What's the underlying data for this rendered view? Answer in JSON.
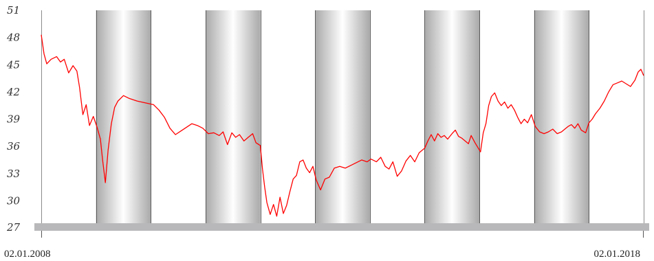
{
  "chart_data": {
    "type": "line",
    "title": "",
    "xlabel": "",
    "ylabel": "",
    "x_range": [
      "02.01.2008",
      "02.01.2018"
    ],
    "x_tick_labels": [
      "02.01.2008",
      "02.01.2018"
    ],
    "y_ticks": [
      27,
      30,
      33,
      36,
      39,
      42,
      45,
      48,
      51
    ],
    "ylim": [
      27,
      51
    ],
    "grid": "alternating shaded yearly bands",
    "colors": {
      "line": "#ff0000",
      "axis_bar": "#b8b8ba",
      "band_edge": "#a9a9a9",
      "band_center": "#ffffff"
    },
    "series": [
      {
        "values": [
          [
            2008.0,
            48.3
          ],
          [
            2008.05,
            46.2
          ],
          [
            2008.1,
            45.1
          ],
          [
            2008.18,
            45.6
          ],
          [
            2008.28,
            45.9
          ],
          [
            2008.35,
            45.3
          ],
          [
            2008.42,
            45.6
          ],
          [
            2008.5,
            44.1
          ],
          [
            2008.58,
            44.9
          ],
          [
            2008.65,
            44.3
          ],
          [
            2008.7,
            42.5
          ],
          [
            2008.76,
            39.5
          ],
          [
            2008.82,
            40.6
          ],
          [
            2008.88,
            38.3
          ],
          [
            2008.95,
            39.3
          ],
          [
            2009.02,
            38.1
          ],
          [
            2009.08,
            36.8
          ],
          [
            2009.12,
            34.5
          ],
          [
            2009.17,
            32.0
          ],
          [
            2009.22,
            35.6
          ],
          [
            2009.28,
            38.5
          ],
          [
            2009.34,
            40.3
          ],
          [
            2009.4,
            41.0
          ],
          [
            2009.5,
            41.6
          ],
          [
            2009.6,
            41.3
          ],
          [
            2009.75,
            41.0
          ],
          [
            2009.9,
            40.8
          ],
          [
            2010.05,
            40.6
          ],
          [
            2010.15,
            40.0
          ],
          [
            2010.25,
            39.2
          ],
          [
            2010.35,
            38.0
          ],
          [
            2010.45,
            37.3
          ],
          [
            2010.55,
            37.7
          ],
          [
            2010.65,
            38.1
          ],
          [
            2010.75,
            38.5
          ],
          [
            2010.85,
            38.3
          ],
          [
            2010.95,
            38.0
          ],
          [
            2011.05,
            37.4
          ],
          [
            2011.15,
            37.5
          ],
          [
            2011.25,
            37.2
          ],
          [
            2011.32,
            37.6
          ],
          [
            2011.4,
            36.2
          ],
          [
            2011.48,
            37.5
          ],
          [
            2011.55,
            37.0
          ],
          [
            2011.62,
            37.3
          ],
          [
            2011.7,
            36.6
          ],
          [
            2011.78,
            37.0
          ],
          [
            2011.86,
            37.4
          ],
          [
            2011.92,
            36.4
          ],
          [
            2012.0,
            36.1
          ],
          [
            2012.04,
            33.5
          ],
          [
            2012.08,
            31.5
          ],
          [
            2012.12,
            29.8
          ],
          [
            2012.18,
            28.5
          ],
          [
            2012.24,
            29.6
          ],
          [
            2012.3,
            28.3
          ],
          [
            2012.36,
            30.4
          ],
          [
            2012.42,
            28.6
          ],
          [
            2012.48,
            29.5
          ],
          [
            2012.54,
            31.0
          ],
          [
            2012.6,
            32.4
          ],
          [
            2012.66,
            32.8
          ],
          [
            2012.72,
            34.3
          ],
          [
            2012.78,
            34.5
          ],
          [
            2012.84,
            33.6
          ],
          [
            2012.9,
            33.1
          ],
          [
            2012.96,
            33.8
          ],
          [
            2013.02,
            32.3
          ],
          [
            2013.1,
            31.2
          ],
          [
            2013.18,
            32.4
          ],
          [
            2013.26,
            32.6
          ],
          [
            2013.35,
            33.6
          ],
          [
            2013.45,
            33.8
          ],
          [
            2013.55,
            33.6
          ],
          [
            2013.65,
            33.9
          ],
          [
            2013.75,
            34.2
          ],
          [
            2013.85,
            34.5
          ],
          [
            2013.95,
            34.3
          ],
          [
            2014.02,
            34.6
          ],
          [
            2014.12,
            34.3
          ],
          [
            2014.2,
            34.8
          ],
          [
            2014.28,
            33.8
          ],
          [
            2014.35,
            33.5
          ],
          [
            2014.42,
            34.3
          ],
          [
            2014.5,
            32.7
          ],
          [
            2014.58,
            33.3
          ],
          [
            2014.66,
            34.4
          ],
          [
            2014.74,
            35.0
          ],
          [
            2014.82,
            34.3
          ],
          [
            2014.9,
            35.3
          ],
          [
            2015.0,
            35.8
          ],
          [
            2015.06,
            36.6
          ],
          [
            2015.12,
            37.3
          ],
          [
            2015.18,
            36.6
          ],
          [
            2015.24,
            37.4
          ],
          [
            2015.3,
            37.0
          ],
          [
            2015.36,
            37.2
          ],
          [
            2015.42,
            36.8
          ],
          [
            2015.5,
            37.4
          ],
          [
            2015.56,
            37.8
          ],
          [
            2015.62,
            37.1
          ],
          [
            2015.68,
            36.9
          ],
          [
            2015.74,
            36.6
          ],
          [
            2015.8,
            36.3
          ],
          [
            2015.85,
            37.2
          ],
          [
            2015.92,
            36.4
          ],
          [
            2015.97,
            35.9
          ],
          [
            2016.02,
            35.4
          ],
          [
            2016.07,
            37.5
          ],
          [
            2016.12,
            38.5
          ],
          [
            2016.17,
            40.5
          ],
          [
            2016.22,
            41.5
          ],
          [
            2016.28,
            41.9
          ],
          [
            2016.34,
            41.0
          ],
          [
            2016.4,
            40.5
          ],
          [
            2016.46,
            40.9
          ],
          [
            2016.52,
            40.2
          ],
          [
            2016.58,
            40.6
          ],
          [
            2016.64,
            40.0
          ],
          [
            2016.7,
            39.2
          ],
          [
            2016.76,
            38.5
          ],
          [
            2016.82,
            39.0
          ],
          [
            2016.88,
            38.6
          ],
          [
            2016.95,
            39.5
          ],
          [
            2017.02,
            38.2
          ],
          [
            2017.1,
            37.6
          ],
          [
            2017.18,
            37.4
          ],
          [
            2017.26,
            37.6
          ],
          [
            2017.34,
            37.9
          ],
          [
            2017.42,
            37.4
          ],
          [
            2017.5,
            37.6
          ],
          [
            2017.56,
            37.9
          ],
          [
            2017.62,
            38.2
          ],
          [
            2017.68,
            38.4
          ],
          [
            2017.74,
            38.0
          ],
          [
            2017.8,
            38.5
          ],
          [
            2017.86,
            37.8
          ],
          [
            2017.94,
            37.5
          ],
          [
            2018.0,
            38.6
          ],
          [
            2018.06,
            39.0
          ],
          [
            2018.12,
            39.6
          ],
          [
            2018.2,
            40.2
          ],
          [
            2018.28,
            41.0
          ],
          [
            2018.36,
            42.0
          ],
          [
            2018.44,
            42.8
          ],
          [
            2018.52,
            43.0
          ],
          [
            2018.6,
            43.2
          ],
          [
            2018.68,
            42.9
          ],
          [
            2018.76,
            42.6
          ],
          [
            2018.84,
            43.3
          ],
          [
            2018.9,
            44.2
          ],
          [
            2018.95,
            44.5
          ],
          [
            2019.0,
            43.8
          ]
        ]
      }
    ]
  }
}
